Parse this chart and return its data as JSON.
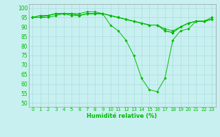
{
  "xlabel": "Humidité relative (%)",
  "ylabel": "",
  "background_color": "#c8f0f0",
  "grid_color": "#aadddd",
  "line_color": "#00bb00",
  "marker_color": "#00bb00",
  "xlim": [
    -0.5,
    23.5
  ],
  "ylim": [
    48,
    102
  ],
  "yticks": [
    50,
    55,
    60,
    65,
    70,
    75,
    80,
    85,
    90,
    95,
    100
  ],
  "xticks": [
    0,
    1,
    2,
    3,
    4,
    5,
    6,
    7,
    8,
    9,
    10,
    11,
    12,
    13,
    14,
    15,
    16,
    17,
    18,
    19,
    20,
    21,
    22,
    23
  ],
  "series": [
    [
      95,
      95,
      95,
      96,
      97,
      96,
      96,
      97,
      97,
      97,
      91,
      88,
      83,
      75,
      63,
      57,
      56,
      63,
      83,
      88,
      89,
      93,
      93,
      95
    ],
    [
      95,
      95,
      96,
      97,
      97,
      97,
      97,
      98,
      98,
      97,
      96,
      95,
      94,
      93,
      92,
      91,
      91,
      88,
      87,
      90,
      92,
      93,
      93,
      94
    ],
    [
      95,
      96,
      96,
      97,
      97,
      97,
      96,
      97,
      97,
      97,
      96,
      95,
      94,
      93,
      92,
      91,
      91,
      89,
      88,
      90,
      92,
      93,
      93,
      94
    ],
    [
      95,
      96,
      96,
      97,
      97,
      97,
      96,
      97,
      97,
      97,
      96,
      95,
      94,
      93,
      92,
      91,
      91,
      88,
      87,
      90,
      92,
      93,
      93,
      94
    ]
  ]
}
